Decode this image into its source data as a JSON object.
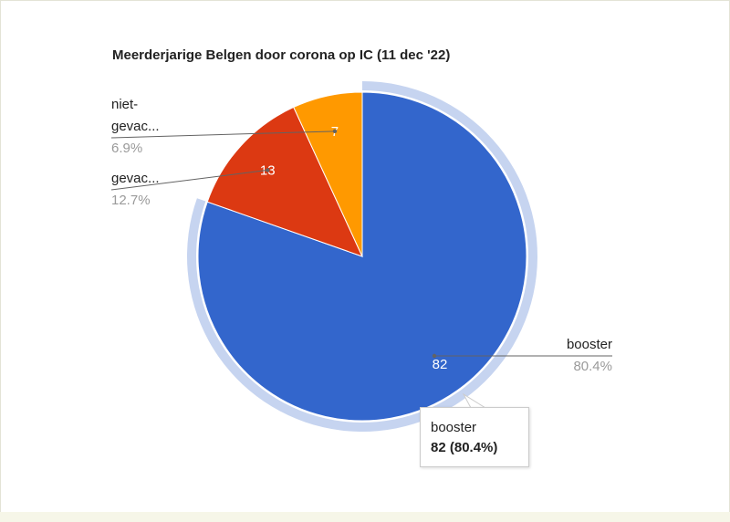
{
  "chart_data": {
    "type": "pie",
    "title": "Meerderjarige Belgen door corona op IC (11 dec '22)",
    "slices": [
      {
        "label": "booster",
        "label_lines": [
          "booster"
        ],
        "value": 82,
        "percent": "80.4%",
        "color": "#3366cc"
      },
      {
        "label": "gevac...",
        "label_lines": [
          "gevac..."
        ],
        "value": 13,
        "percent": "12.7%",
        "color": "#dc3912"
      },
      {
        "label": "niet-gevac...",
        "label_lines": [
          "niet-",
          "gevac..."
        ],
        "value": 7,
        "percent": "6.9%",
        "color": "#ff9900"
      }
    ],
    "highlighted_slice": "booster",
    "legend": "labeled"
  },
  "tooltip": {
    "label": "booster",
    "value_text": "82 (80.4%)"
  }
}
